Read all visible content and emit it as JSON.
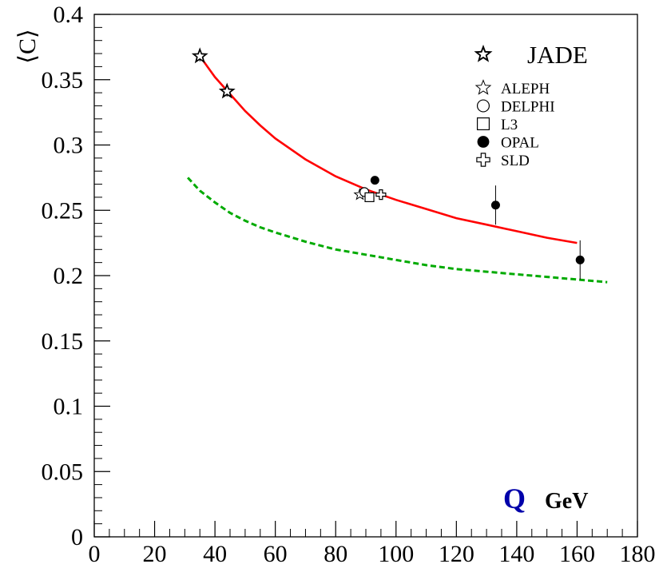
{
  "chart_data": {
    "type": "scatter",
    "ylabel": "⟨C⟩",
    "xlabel_symbol": "Q",
    "xlabel_unit": "GeV",
    "xlim": [
      0,
      180
    ],
    "ylim": [
      0,
      0.4
    ],
    "x_ticks": [
      "0",
      "20",
      "40",
      "60",
      "80",
      "100",
      "120",
      "140",
      "160",
      "180"
    ],
    "y_ticks": [
      "0",
      "0.05",
      "0.1",
      "0.15",
      "0.2",
      "0.25",
      "0.3",
      "0.35",
      "0.4"
    ],
    "grid": false,
    "legend_position": "top-right",
    "colors": {
      "fit_curve": "#ff0000",
      "reference_curve": "#00aa00",
      "q_symbol": "#0000aa"
    },
    "series": [
      {
        "name": "JADE",
        "marker": "star-large",
        "points": [
          {
            "x": 35,
            "y": 0.368,
            "err": 0.004
          },
          {
            "x": 44,
            "y": 0.341,
            "err": 0.004
          }
        ]
      },
      {
        "name": "ALEPH",
        "marker": "star-small",
        "points": [
          {
            "x": 88,
            "y": 0.262,
            "err": 0.002
          }
        ]
      },
      {
        "name": "DELPHI",
        "marker": "circle-open",
        "points": [
          {
            "x": 89.5,
            "y": 0.264,
            "err": 0.002
          }
        ]
      },
      {
        "name": "L3",
        "marker": "square-open",
        "points": [
          {
            "x": 91.2,
            "y": 0.26,
            "err": 0.003
          }
        ]
      },
      {
        "name": "OPAL",
        "marker": "circle-filled",
        "points": [
          {
            "x": 93,
            "y": 0.273,
            "err": 0.002
          },
          {
            "x": 133,
            "y": 0.254,
            "err": 0.015
          },
          {
            "x": 161,
            "y": 0.212,
            "err": 0.015
          }
        ]
      },
      {
        "name": "SLD",
        "marker": "cross-open",
        "points": [
          {
            "x": 95,
            "y": 0.262,
            "err": 0.002
          }
        ]
      }
    ],
    "curves": [
      {
        "id": "fit",
        "style": "solid",
        "x": [
          35,
          40,
          45,
          50,
          55,
          60,
          70,
          80,
          90,
          100,
          110,
          120,
          130,
          140,
          150,
          160
        ],
        "y": [
          0.368,
          0.352,
          0.339,
          0.326,
          0.315,
          0.305,
          0.289,
          0.276,
          0.266,
          0.258,
          0.251,
          0.244,
          0.239,
          0.234,
          0.229,
          0.225
        ]
      },
      {
        "id": "reference",
        "style": "dashed",
        "x": [
          31,
          35,
          40,
          45,
          50,
          55,
          60,
          70,
          80,
          90,
          100,
          110,
          120,
          130,
          140,
          150,
          160,
          170
        ],
        "y": [
          0.275,
          0.265,
          0.256,
          0.248,
          0.242,
          0.237,
          0.233,
          0.226,
          0.22,
          0.216,
          0.212,
          0.208,
          0.205,
          0.203,
          0.201,
          0.199,
          0.197,
          0.195
        ]
      }
    ]
  }
}
